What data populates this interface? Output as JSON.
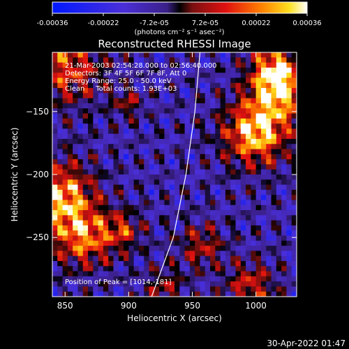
{
  "chart_data": {
    "type": "heatmap",
    "title": "Reconstructed RHESSI Image",
    "xlabel": "Heliocentric X (arcsec)",
    "ylabel": "Heliocentric Y (arcsec)",
    "xlim": [
      840,
      1032
    ],
    "ylim": [
      -297,
      -103
    ],
    "xticks": [
      850,
      900,
      950,
      1000
    ],
    "yticks": [
      -150,
      -200,
      -250
    ],
    "colorbar": {
      "range": [
        -0.00036,
        0.00036
      ],
      "ticks": [
        "-0.00036",
        "-0.00022",
        "-7.2e-05",
        "7.2e-05",
        "0.00022",
        "0.00036"
      ],
      "unit_label": "(photons cm⁻² s⁻¹ asec⁻²)"
    },
    "annotations": [
      "21-Mar-2003 02:54:28.000 to 02:56:40.000",
      "Detectors: 3F 4F 5F 6F 7F 8F, Att 0",
      "Energy Range: 25.0 - 50.0 keV",
      "Clean     Total counts: 1.93E+03"
    ],
    "peak_label": "Position of Peak = [1014,-181]",
    "limb_curve": [
      [
        918,
        -297
      ],
      [
        935,
        -250
      ],
      [
        945,
        -200
      ],
      [
        952,
        -150
      ],
      [
        956,
        -103
      ]
    ]
  },
  "timestamp": "30-Apr-2022 01:47"
}
